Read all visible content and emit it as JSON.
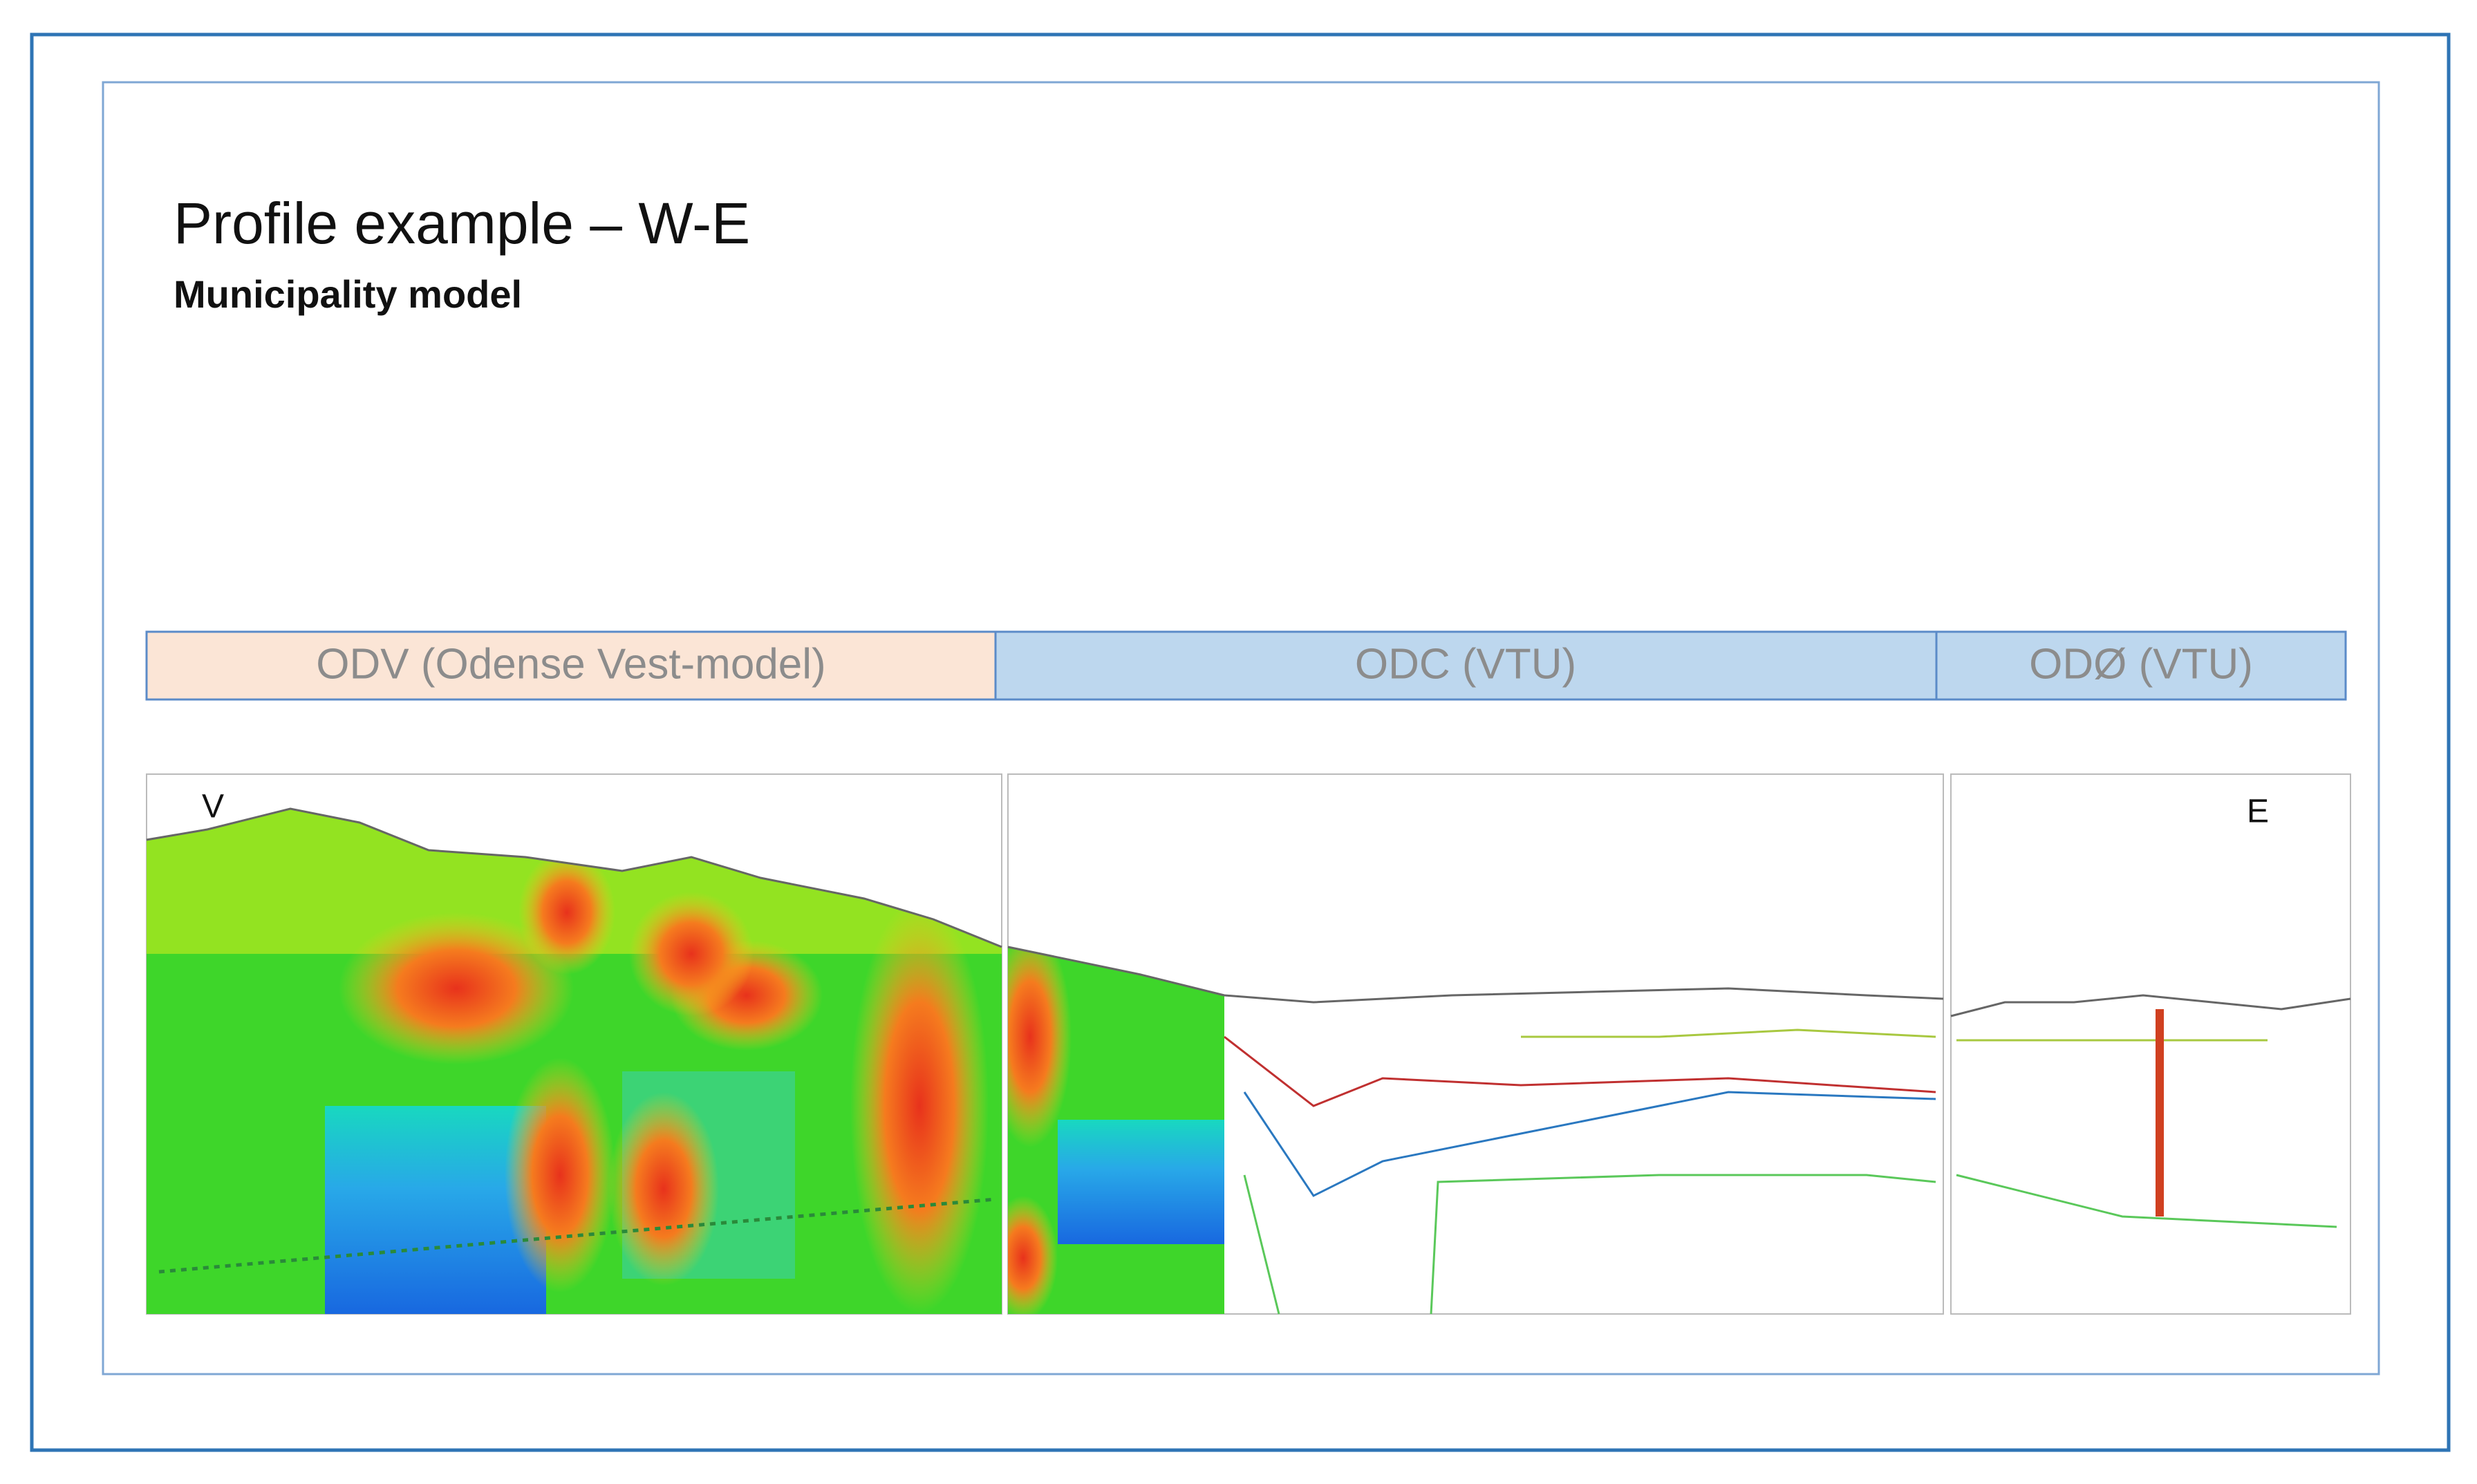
{
  "header": {
    "title": "Profile example – W-E",
    "subtitle": "Municipality model"
  },
  "sections": [
    {
      "label": "ODV (Odense  Vest-model)"
    },
    {
      "label": "ODC (VTU)"
    },
    {
      "label": "ODØ (VTU)"
    }
  ],
  "profile": {
    "west_label": "V",
    "east_label": "E"
  }
}
